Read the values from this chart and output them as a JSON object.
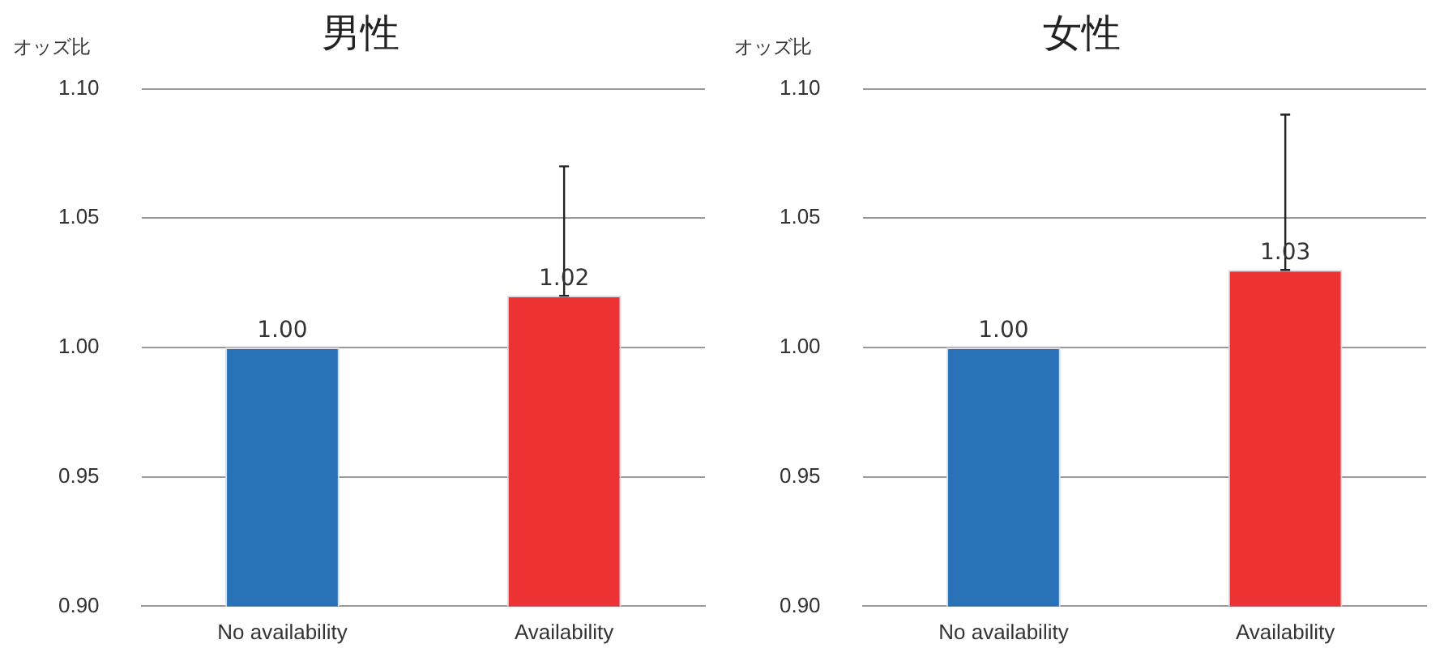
{
  "chart_data": [
    {
      "type": "bar",
      "title": "男性",
      "ylabel": "オッズ比",
      "categories": [
        "No availability",
        "Availability"
      ],
      "values": [
        1.0,
        1.02
      ],
      "colors": [
        "#2a72b8",
        "#ec3232"
      ],
      "errors": [
        null,
        [
          1.02,
          1.07
        ]
      ],
      "ylim": [
        0.9,
        1.1
      ],
      "yticks": [
        {
          "value": 0.9,
          "label": "0.90"
        },
        {
          "value": 0.95,
          "label": "0.95"
        },
        {
          "value": 1.0,
          "label": "1.00"
        },
        {
          "value": 1.05,
          "label": "1.05"
        },
        {
          "value": 1.1,
          "label": "1.10"
        }
      ],
      "value_labels": [
        "1.00",
        "1.02"
      ],
      "grid": "y",
      "legend": false
    },
    {
      "type": "bar",
      "title": "女性",
      "ylabel": "オッズ比",
      "categories": [
        "No availability",
        "Availability"
      ],
      "values": [
        1.0,
        1.03
      ],
      "colors": [
        "#2a72b8",
        "#ec3232"
      ],
      "errors": [
        null,
        [
          1.03,
          1.09
        ]
      ],
      "ylim": [
        0.9,
        1.1
      ],
      "yticks": [
        {
          "value": 0.9,
          "label": "0.90"
        },
        {
          "value": 0.95,
          "label": "0.95"
        },
        {
          "value": 1.0,
          "label": "1.00"
        },
        {
          "value": 1.05,
          "label": "1.05"
        },
        {
          "value": 1.1,
          "label": "1.10"
        }
      ],
      "value_labels": [
        "1.00",
        "1.03"
      ],
      "grid": "y",
      "legend": false
    }
  ]
}
